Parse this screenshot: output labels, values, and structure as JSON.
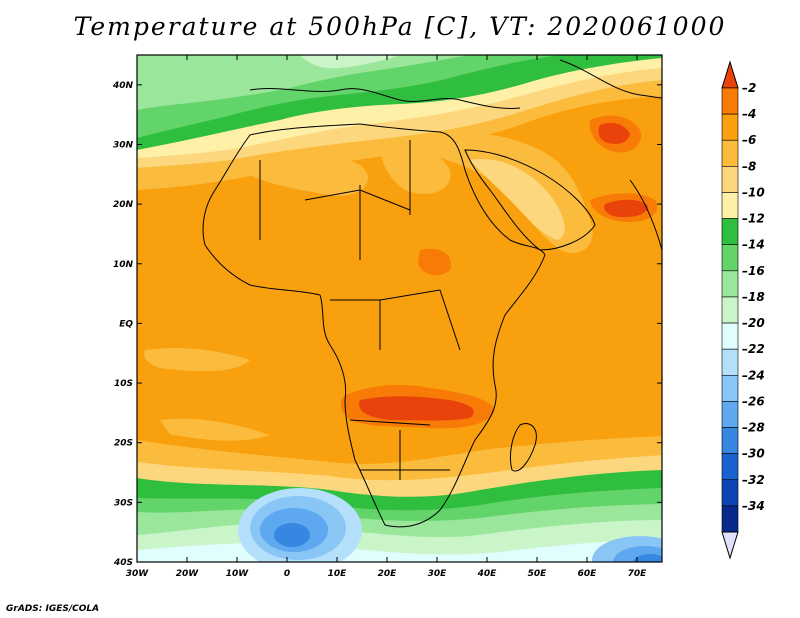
{
  "title": "Temperature at 500hPa [C], VT: 2020061000",
  "footer": "GrADS: IGES/COLA",
  "lon_range": [
    -30,
    75
  ],
  "lat_range": [
    -40,
    45
  ],
  "lon_ticks": [
    {
      "value": -30,
      "label": "30W"
    },
    {
      "value": -20,
      "label": "20W"
    },
    {
      "value": -10,
      "label": "10W"
    },
    {
      "value": 0,
      "label": "0"
    },
    {
      "value": 10,
      "label": "10E"
    },
    {
      "value": 20,
      "label": "20E"
    },
    {
      "value": 30,
      "label": "30E"
    },
    {
      "value": 40,
      "label": "40E"
    },
    {
      "value": 50,
      "label": "50E"
    },
    {
      "value": 60,
      "label": "60E"
    },
    {
      "value": 70,
      "label": "70E"
    }
  ],
  "lat_ticks": [
    {
      "value": 40,
      "label": "40N"
    },
    {
      "value": 30,
      "label": "30N"
    },
    {
      "value": 20,
      "label": "20N"
    },
    {
      "value": 10,
      "label": "10N"
    },
    {
      "value": 0,
      "label": "EQ"
    },
    {
      "value": -10,
      "label": "10S"
    },
    {
      "value": -20,
      "label": "20S"
    },
    {
      "value": -30,
      "label": "30S"
    },
    {
      "value": -40,
      "label": "40S"
    }
  ],
  "colorbar": {
    "colors_top_to_bottom": [
      "#e9430b",
      "#f77b06",
      "#f9a00e",
      "#fbbb3c",
      "#fdd77e",
      "#fff0a8",
      "#2fbe3e",
      "#62d46a",
      "#9ae69a",
      "#c9f5c9",
      "#e1fefe",
      "#b5e0fb",
      "#89c6f6",
      "#5da8ef",
      "#3686e2",
      "#1a62ce",
      "#0d44b3",
      "#07298c",
      "#011365"
    ],
    "labels": [
      "-2",
      "-4",
      "-6",
      "-8",
      "-10",
      "-12",
      "-14",
      "-16",
      "-18",
      "-20",
      "-22",
      "-24",
      "-26",
      "-28",
      "-30",
      "-32",
      "-34"
    ]
  }
}
